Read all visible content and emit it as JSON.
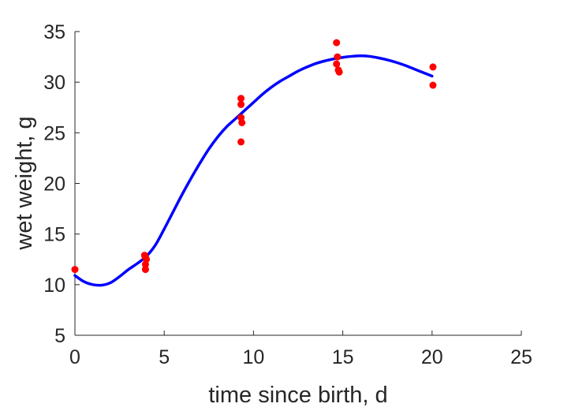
{
  "chart_data": {
    "type": "scatter",
    "xlabel": "time since birth, d",
    "ylabel": "wet weight, g",
    "xlim": [
      0,
      25
    ],
    "ylim": [
      5,
      35
    ],
    "xticks": [
      "0",
      "5",
      "10",
      "15",
      "20",
      "25"
    ],
    "yticks": [
      "5",
      "10",
      "15",
      "20",
      "25",
      "30",
      "35"
    ],
    "grid": false,
    "series": [
      {
        "kind": "points",
        "color": "#ff0000",
        "points": [
          [
            0,
            11.5
          ],
          [
            3.9,
            12.9
          ],
          [
            3.95,
            12.7
          ],
          [
            4.0,
            12.5
          ],
          [
            3.95,
            12.0
          ],
          [
            3.95,
            11.5
          ],
          [
            9.3,
            28.4
          ],
          [
            9.3,
            27.8
          ],
          [
            9.3,
            26.5
          ],
          [
            9.35,
            26.0
          ],
          [
            9.3,
            24.1
          ],
          [
            14.65,
            33.9
          ],
          [
            14.7,
            32.5
          ],
          [
            14.65,
            31.8
          ],
          [
            14.75,
            31.2
          ],
          [
            14.8,
            31.0
          ],
          [
            20.05,
            31.5
          ],
          [
            20.05,
            29.7
          ]
        ]
      },
      {
        "kind": "curve",
        "color": "#0000ff",
        "x": [
          0,
          0.5,
          1,
          1.5,
          2,
          2.5,
          3,
          3.5,
          4,
          4.5,
          5,
          5.5,
          6,
          6.5,
          7,
          7.5,
          8,
          8.5,
          9,
          9.5,
          10,
          10.5,
          11,
          11.5,
          12,
          12.5,
          13,
          13.5,
          14,
          14.5,
          15,
          15.5,
          16,
          16.5,
          17,
          17.5,
          18,
          18.5,
          19,
          19.5,
          20
        ],
        "y": [
          10.9,
          10.3,
          10.0,
          9.95,
          10.2,
          10.8,
          11.5,
          12.1,
          12.8,
          13.9,
          15.5,
          17.2,
          18.9,
          20.5,
          22.0,
          23.4,
          24.6,
          25.6,
          26.4,
          27.2,
          28.0,
          28.8,
          29.5,
          30.1,
          30.6,
          31.1,
          31.5,
          31.85,
          32.1,
          32.3,
          32.45,
          32.55,
          32.6,
          32.55,
          32.4,
          32.2,
          31.95,
          31.65,
          31.3,
          30.95,
          30.6
        ]
      }
    ]
  }
}
